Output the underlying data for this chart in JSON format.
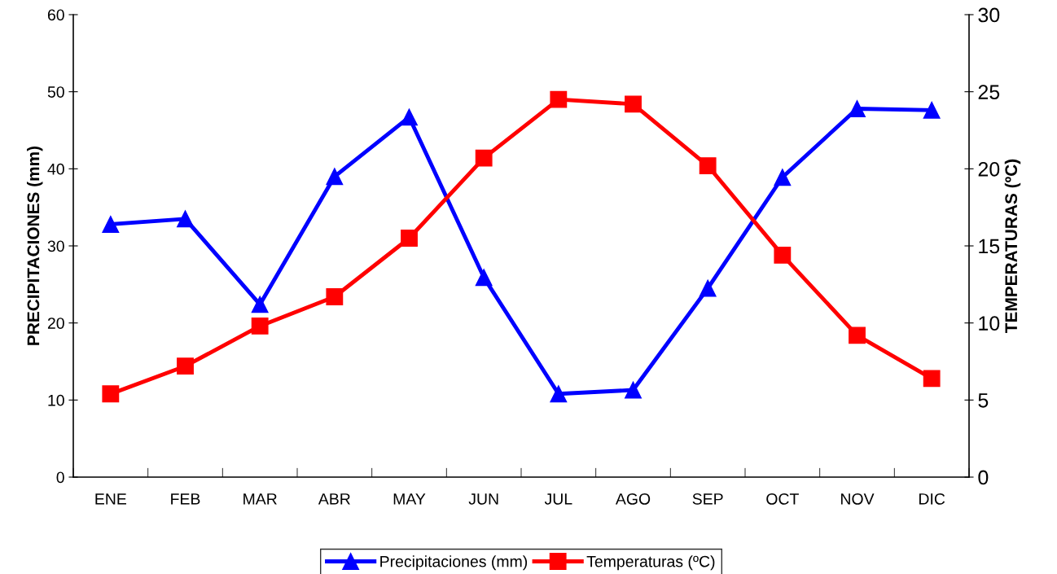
{
  "chart_data": {
    "type": "line",
    "ylabel": "PRECIPITACIONES (mm)",
    "y2label": "TEMPERATURAS (ºC)",
    "categories": [
      "ENE",
      "FEB",
      "MAR",
      "ABR",
      "MAY",
      "JUN",
      "JUL",
      "AGO",
      "SEP",
      "OCT",
      "NOV",
      "DIC"
    ],
    "series": [
      {
        "name": "Precipitaciones (mm)",
        "color": "#0000ff",
        "marker": "triangle",
        "values": [
          32.8,
          33.5,
          22.4,
          39.0,
          46.7,
          25.9,
          10.8,
          11.3,
          24.5,
          38.9,
          47.8,
          47.6
        ]
      },
      {
        "name": "Temperaturas (ºC)",
        "color": "#ff0000",
        "marker": "square",
        "axis": "y2",
        "values": [
          5.4,
          7.2,
          9.8,
          11.7,
          15.5,
          20.7,
          24.5,
          24.2,
          20.2,
          14.4,
          9.2,
          6.4
        ]
      }
    ],
    "ylim": [
      0,
      60
    ],
    "yticks": [
      0,
      10,
      20,
      30,
      40,
      50,
      60
    ],
    "y2lim": [
      0,
      30
    ],
    "y2ticks": [
      0,
      5,
      10,
      15,
      20,
      25,
      30
    ],
    "grid": false,
    "legend": "bottom",
    "line_style": "solid"
  }
}
